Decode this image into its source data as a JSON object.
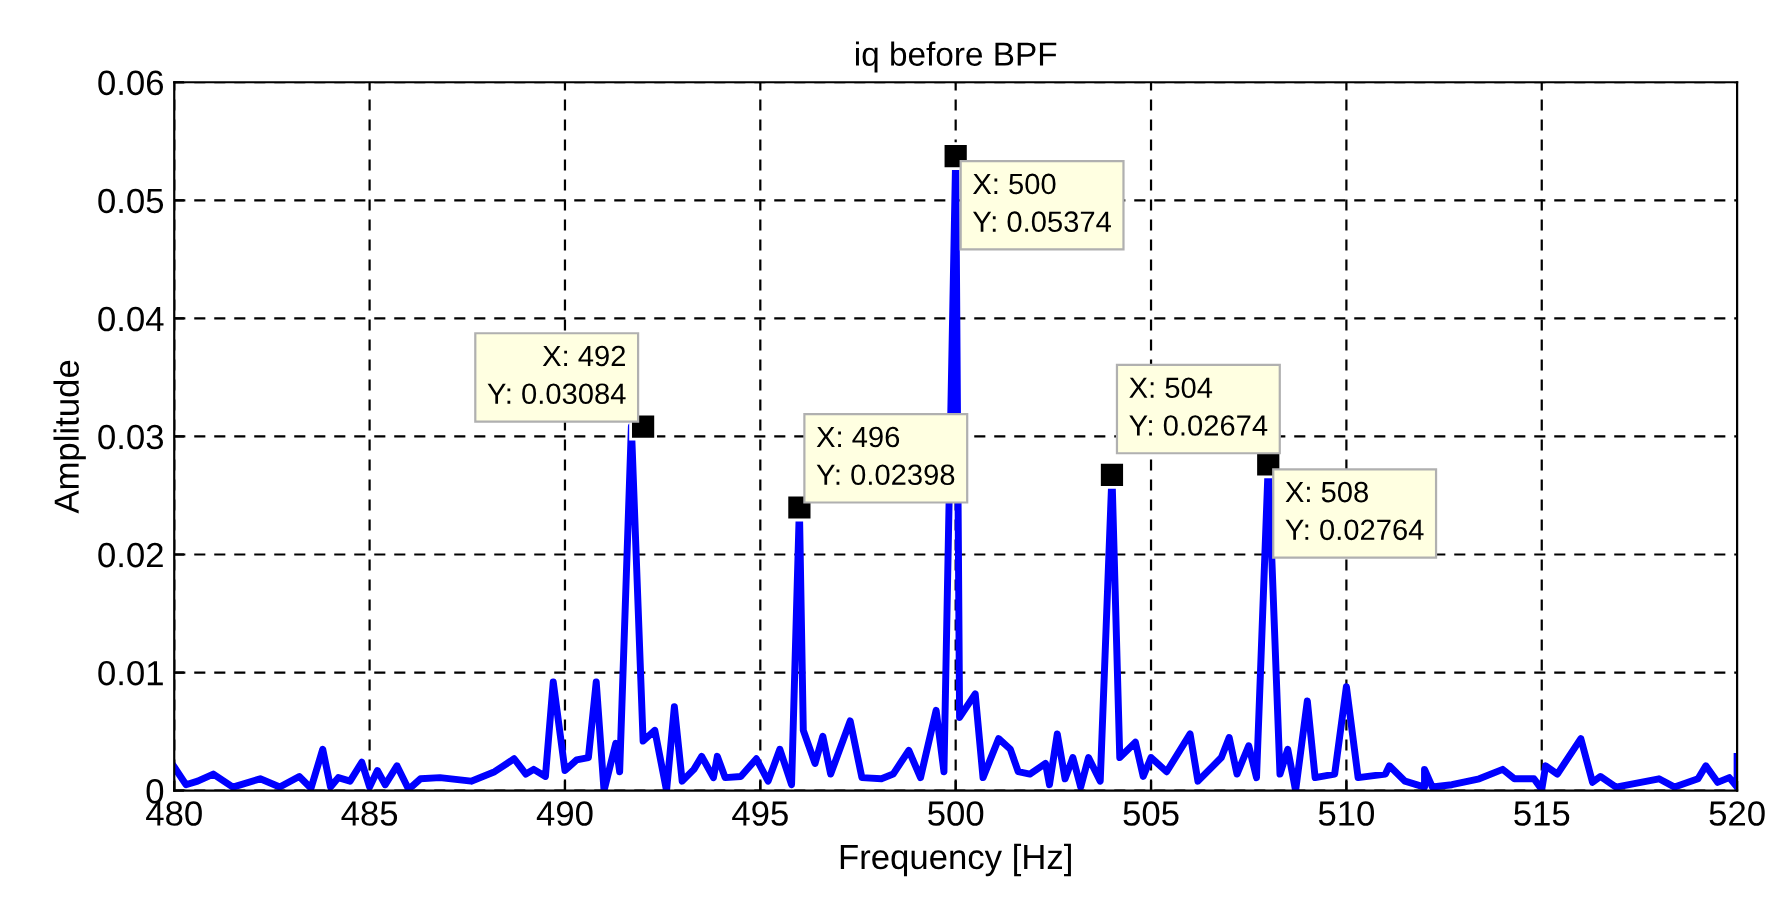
{
  "chart_data": {
    "type": "line",
    "title": "iq before BPF",
    "xlabel": "Frequency [Hz]",
    "ylabel": "Amplitude",
    "xlim": [
      480,
      520
    ],
    "ylim": [
      0,
      0.06
    ],
    "xticks": [
      480,
      485,
      490,
      495,
      500,
      505,
      510,
      515,
      520
    ],
    "yticks": [
      0,
      0.01,
      0.02,
      0.03,
      0.04,
      0.05,
      0.06
    ],
    "grid": true,
    "series": [
      {
        "color": "#0000ff",
        "x": [
          480,
          480.3,
          480.6,
          481,
          481.5,
          482.2,
          482.7,
          483.2,
          483.5,
          483.8,
          484,
          484.2,
          484.5,
          484.8,
          485,
          485.2,
          485.4,
          485.7,
          486,
          486.3,
          486.8,
          487.6,
          488.2,
          488.7,
          489,
          489.2,
          489.5,
          489.7,
          490,
          490.3,
          490.6,
          490.8,
          491,
          491.3,
          491.4,
          491.7,
          492,
          492.3,
          492.6,
          492.8,
          493,
          493.3,
          493.5,
          493.8,
          493.9,
          494.1,
          494.5,
          494.9,
          495.2,
          495.5,
          495.8,
          496,
          496.1,
          496.4,
          496.6,
          496.8,
          497.3,
          497.6,
          498.1,
          498.4,
          498.8,
          499.1,
          499.5,
          499.7,
          500,
          500.1,
          500.5,
          500.7,
          501.1,
          501.4,
          501.6,
          501.9,
          502.3,
          502.4,
          502.6,
          502.8,
          503,
          503.2,
          503.4,
          503.7,
          504,
          504.2,
          504.6,
          504.8,
          505,
          505.4,
          506,
          506.2,
          506.8,
          507,
          507.2,
          507.5,
          507.7,
          508,
          508.3,
          508.5,
          508.7,
          509,
          509.2,
          509.7,
          510,
          510.3,
          511,
          511.1,
          511.5,
          512,
          512,
          512.2,
          512.7,
          513.4,
          514,
          514.3,
          514.8,
          515,
          515.1,
          515.4,
          516,
          516.3,
          516.5,
          516.9,
          518,
          518.4,
          519,
          519.2,
          519.5,
          519.8,
          520,
          520
        ],
        "values": [
          0.002,
          0.0005,
          0.0008,
          0.0014,
          0.0003,
          0.001,
          0.0003,
          0.0012,
          0.0002,
          0.0035,
          0.0003,
          0.0011,
          0.0008,
          0.0024,
          0.0003,
          0.0017,
          0.0005,
          0.0021,
          0.0001,
          0.001,
          0.0011,
          0.0008,
          0.0016,
          0.0027,
          0.0014,
          0.0018,
          0.0012,
          0.0092,
          0.0017,
          0.0026,
          0.0028,
          0.0092,
          0,
          0.004,
          0.0016,
          0.03084,
          0.0042,
          0.0051,
          0,
          0.0071,
          0.0008,
          0.0018,
          0.0029,
          0.0011,
          0.0029,
          0.0011,
          0.0012,
          0.0027,
          0.0008,
          0.0035,
          0.0005,
          0.02398,
          0.0051,
          0.0023,
          0.0046,
          0.0014,
          0.0059,
          0.0011,
          0.001,
          0.0014,
          0.0034,
          0.0011,
          0.0068,
          0.0016,
          0.05374,
          0.0062,
          0.0082,
          0.0011,
          0.0044,
          0.0035,
          0.0016,
          0.0014,
          0.0023,
          0.0005,
          0.0048,
          0.001,
          0.0028,
          0.0003,
          0.0028,
          0.0008,
          0.02674,
          0.0028,
          0.0041,
          0.0012,
          0.0028,
          0.0016,
          0.0048,
          0.0008,
          0.0028,
          0.0045,
          0.0014,
          0.0038,
          0.0011,
          0.02764,
          0.0014,
          0.0035,
          0,
          0.0076,
          0.0011,
          0.0014,
          0.0088,
          0.0011,
          0.0014,
          0.0021,
          0.0008,
          0.0003,
          0.0018,
          0.0003,
          0.0005,
          0.001,
          0.0018,
          0.001,
          0.001,
          0.0001,
          0.0021,
          0.0014,
          0.0044,
          0.0007,
          0.0012,
          0.0003,
          0.001,
          0.0003,
          0.001,
          0.0021,
          0.0007,
          0.0011,
          0.0003,
          0.0029
        ]
      }
    ],
    "annotations": [
      {
        "text": "X: 492\nY: 0.03084",
        "x": 492,
        "y": 0.03084
      },
      {
        "text": "X: 496\nY: 0.02398",
        "x": 496,
        "y": 0.02398
      },
      {
        "text": "X: 500\nY: 0.05374",
        "x": 500,
        "y": 0.05374
      },
      {
        "text": "X: 504\nY: 0.02674",
        "x": 504,
        "y": 0.02674
      },
      {
        "text": "X: 508\nY: 0.02764",
        "x": 508,
        "y": 0.02764
      }
    ]
  }
}
